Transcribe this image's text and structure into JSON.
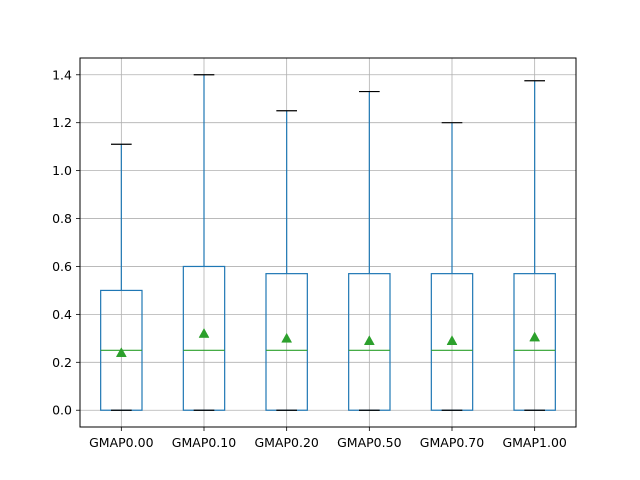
{
  "chart_data": {
    "type": "box",
    "categories": [
      "GMAP0.00",
      "GMAP0.10",
      "GMAP0.20",
      "GMAP0.50",
      "GMAP0.70",
      "GMAP1.00"
    ],
    "boxes": [
      {
        "whisker_low": 0.0,
        "q1": 0.0,
        "median": 0.25,
        "q3": 0.5,
        "whisker_high": 1.11,
        "mean": 0.24
      },
      {
        "whisker_low": 0.0,
        "q1": 0.0,
        "median": 0.25,
        "q3": 0.6,
        "whisker_high": 1.4,
        "mean": 0.32
      },
      {
        "whisker_low": 0.0,
        "q1": 0.0,
        "median": 0.25,
        "q3": 0.57,
        "whisker_high": 1.25,
        "mean": 0.3
      },
      {
        "whisker_low": 0.0,
        "q1": 0.0,
        "median": 0.25,
        "q3": 0.57,
        "whisker_high": 1.33,
        "mean": 0.29
      },
      {
        "whisker_low": 0.0,
        "q1": 0.0,
        "median": 0.25,
        "q3": 0.57,
        "whisker_high": 1.2,
        "mean": 0.29
      },
      {
        "whisker_low": 0.0,
        "q1": 0.0,
        "median": 0.25,
        "q3": 0.57,
        "whisker_high": 1.375,
        "mean": 0.305
      }
    ],
    "y_ticks": [
      "0.0",
      "0.2",
      "0.4",
      "0.6",
      "0.8",
      "1.0",
      "1.2",
      "1.4"
    ],
    "ylim": [
      -0.07,
      1.47
    ],
    "grid": true,
    "title": "",
    "xlabel": "",
    "ylabel": "",
    "colors": {
      "box": "#1f77b4",
      "median": "#2ca02c",
      "mean_marker": "#2ca02c",
      "cap": "#000000",
      "grid": "#b0b0b0"
    }
  }
}
